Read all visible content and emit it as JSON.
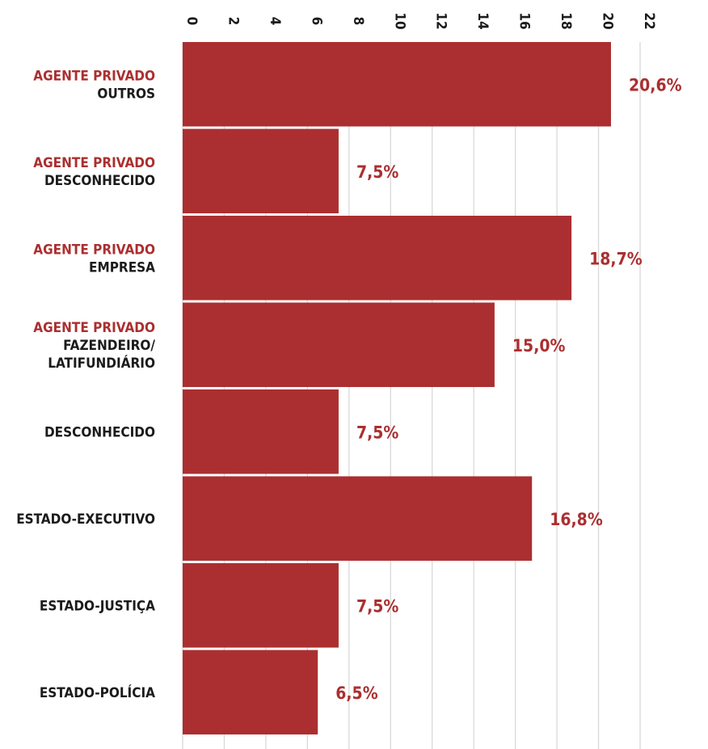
{
  "chart_data": {
    "type": "bar",
    "orientation": "horizontal",
    "xlim": [
      0,
      22
    ],
    "ticks": [
      0,
      2,
      4,
      6,
      8,
      10,
      12,
      14,
      16,
      18,
      20,
      22
    ],
    "grid": true,
    "bar_color": "#ab2f30",
    "label_prefix_color": "#ab2f30",
    "categories": [
      {
        "prefix": "AGENTE PRIVADO",
        "lines": [
          "OUTROS"
        ]
      },
      {
        "prefix": "AGENTE PRIVADO",
        "lines": [
          "DESCONHECIDO"
        ]
      },
      {
        "prefix": "AGENTE PRIVADO",
        "lines": [
          "EMPRESA"
        ]
      },
      {
        "prefix": "AGENTE PRIVADO",
        "lines": [
          "FAZENDEIRO/",
          "LATIFUNDIÁRIO"
        ]
      },
      {
        "prefix": "",
        "lines": [
          "DESCONHECIDO"
        ]
      },
      {
        "prefix": "",
        "lines": [
          "ESTADO-EXECUTIVO"
        ]
      },
      {
        "prefix": "",
        "lines": [
          "ESTADO-JUSTIÇA"
        ]
      },
      {
        "prefix": "",
        "lines": [
          "ESTADO-POLÍCIA"
        ]
      }
    ],
    "values": [
      20.6,
      7.5,
      18.7,
      15.0,
      7.5,
      16.8,
      7.5,
      6.5
    ],
    "value_labels": [
      "20,6%",
      "7,5%",
      "18,7%",
      "15,0%",
      "7,5%",
      "16,8%",
      "7,5%",
      "6,5%"
    ]
  }
}
